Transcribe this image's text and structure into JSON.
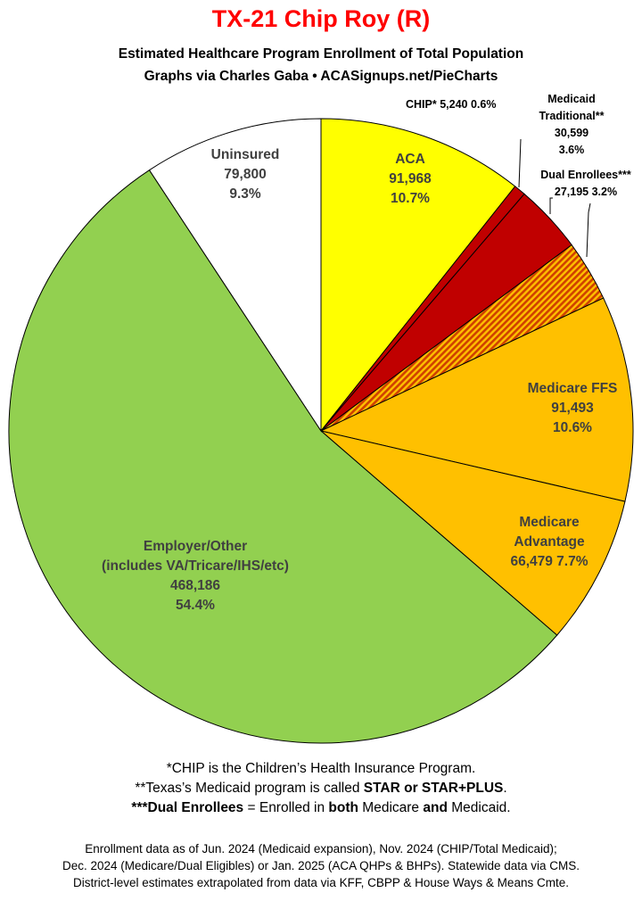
{
  "header": {
    "title": "TX-21 Chip Roy (R)",
    "subtitle1": "Estimated Healthcare Program Enrollment of Total Population",
    "subtitle2": "Graphs via Charles Gaba  •  ACASignups.net/PieCharts"
  },
  "chart_data": {
    "type": "pie",
    "title": "TX-21 Chip Roy (R)",
    "subtitle": "Estimated Healthcare Program Enrollment of Total Population",
    "slices": [
      {
        "name": "ACA",
        "value": 91968,
        "value_label": "91,968",
        "pct_label": "10.7%",
        "color": "#ffff00",
        "pattern": false
      },
      {
        "name": "CHIP*",
        "value": 5240,
        "value_label": "5,240",
        "pct_label": "0.6%",
        "color": "#c00000",
        "pattern": false
      },
      {
        "name": "Medicaid Traditional**",
        "value": 30599,
        "value_label": "30,599",
        "pct_label": "3.6%",
        "color": "#c00000",
        "pattern": false
      },
      {
        "name": "Dual Enrollees***",
        "value": 27195,
        "value_label": "27,195",
        "pct_label": "3.2%",
        "color": "#e06010",
        "pattern": true
      },
      {
        "name": "Medicare FFS",
        "value": 91493,
        "value_label": "91,493",
        "pct_label": "10.6%",
        "color": "#ffc000",
        "pattern": false
      },
      {
        "name": "Medicare Advantage",
        "value": 66479,
        "value_label": "66,479",
        "pct_label": "7.7%",
        "color": "#ffc000",
        "pattern": false
      },
      {
        "name": "Employer/Other (includes VA/Tricare/IHS/etc)",
        "value": 468186,
        "value_label": "468,186",
        "pct_label": "54.4%",
        "color": "#92d050",
        "pattern": false
      },
      {
        "name": "Uninsured",
        "value": 79800,
        "value_label": "79,800",
        "pct_label": "9.3%",
        "color": "#ffffff",
        "pattern": false
      }
    ]
  },
  "labels": {
    "aca": {
      "name": "ACA",
      "value": "91,968",
      "pct": "10.7%"
    },
    "chip": {
      "line": "CHIP* 5,240 0.6%"
    },
    "medicaid": {
      "line1": "Medicaid",
      "line2": "Traditional**",
      "value": "30,599",
      "pct": "3.6%"
    },
    "dual": {
      "line1": "Dual Enrollees***",
      "line2": "27,195 3.2%"
    },
    "ffs": {
      "name": "Medicare FFS",
      "value": "91,493",
      "pct": "10.6%"
    },
    "ma": {
      "line1": "Medicare",
      "line2": "Advantage",
      "line3": "66,479 7.7%"
    },
    "employer": {
      "line1": "Employer/Other",
      "line2": "(includes VA/Tricare/IHS/etc)",
      "value": "468,186",
      "pct": "54.4%"
    },
    "uninsured": {
      "name": "Uninsured",
      "value": "79,800",
      "pct": "9.3%"
    }
  },
  "notes": {
    "note1": "*CHIP is the Children’s Health Insurance Program.",
    "note2_pre": "**Texas’s Medicaid program is called ",
    "note2_bold": "STAR or STAR+PLUS",
    "note2_post": ".",
    "note3_b1": "***Dual Enrollees",
    "note3_t1": " = Enrolled in ",
    "note3_b2": "both",
    "note3_t2": " Medicare ",
    "note3_b3": "and",
    "note3_t3": " Medicaid."
  },
  "footer": {
    "line1": "Enrollment data as of Jun. 2024 (Medicaid expansion), Nov. 2024 (CHIP/Total Medicaid);",
    "line2": "Dec. 2024 (Medicare/Dual Eligibles) or Jan. 2025 (ACA QHPs & BHPs). Statewide data via CMS.",
    "line3": "District-level estimates extrapolated from data via KFF, CBPP & House Ways & Means Cmte."
  }
}
